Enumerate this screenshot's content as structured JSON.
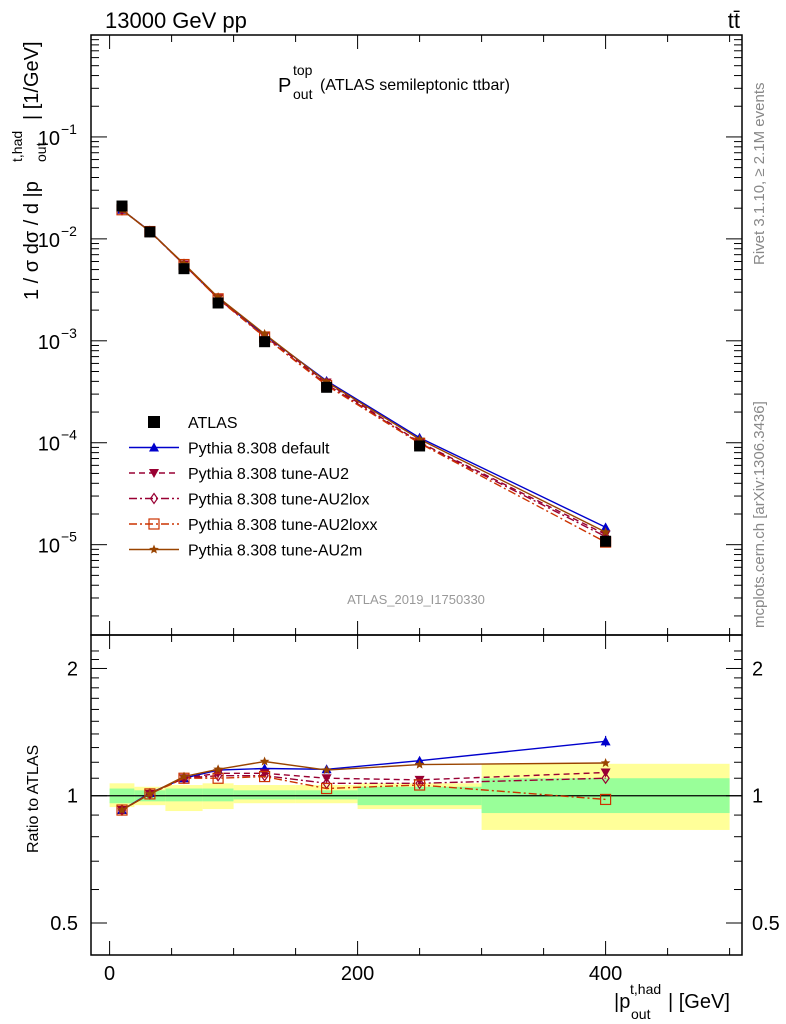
{
  "header": {
    "beam_text": "13000 GeV pp",
    "process_text": "tt̄",
    "title_main": "P",
    "title_sup": "top",
    "title_sub": "out",
    "title_rest": "(ATLAS semileptonic ttbar)",
    "analysis_id": "ATLAS_2019_I1750330",
    "side_rivet": "Rivet 3.1.10, ≥ 2.1M events",
    "side_mcplots": "mcplots.cern.ch [arXiv:1306.3436]"
  },
  "axes": {
    "ylabel_main": "1 / σ dσ / d |p",
    "ylabel_sup": "t,had",
    "ylabel_sub": "out",
    "ylabel_unit": "| [1/GeV]",
    "ratio_ylabel": "Ratio to ATLAS",
    "xlabel_main": "|p",
    "xlabel_sup": "t,had",
    "xlabel_sub": "out",
    "xlabel_unit": "| [GeV]",
    "x_ticks": [
      "0",
      "200",
      "400"
    ],
    "main_ticks": [
      {
        "base": "10",
        "exp": "−1"
      },
      {
        "base": "10",
        "exp": "−2"
      },
      {
        "base": "10",
        "exp": "−3"
      },
      {
        "base": "10",
        "exp": "−4"
      },
      {
        "base": "10",
        "exp": "−5"
      }
    ],
    "ratio_ticks_left": [
      "2",
      "1",
      "0.5"
    ],
    "ratio_ticks_right": [
      "2",
      "1",
      "0.5"
    ]
  },
  "legend": [
    {
      "label": "ATLAS"
    },
    {
      "label": "Pythia 8.308 default"
    },
    {
      "label": "Pythia 8.308 tune-AU2"
    },
    {
      "label": "Pythia 8.308 tune-AU2lox"
    },
    {
      "label": "Pythia 8.308 tune-AU2loxx"
    },
    {
      "label": "Pythia 8.308 tune-AU2m"
    }
  ],
  "chart_data": {
    "type": "line",
    "x_scale": "linear",
    "y_scale": "log",
    "ratio_y_scale": "log",
    "xlim": [
      -15,
      510
    ],
    "ylim": [
      1.3e-06,
      1.0
    ],
    "ratio_ylim": [
      0.42,
      2.4
    ],
    "grid": false,
    "legend_position": "lower-left",
    "x": [
      10,
      32.5,
      60,
      87.5,
      125,
      175,
      250,
      400
    ],
    "bin_edges": [
      0,
      20,
      45,
      75,
      100,
      150,
      200,
      300,
      500
    ],
    "data": {
      "name": "ATLAS",
      "values": [
        0.021,
        0.0117,
        0.0051,
        0.00235,
        0.00098,
        0.00035,
        9.3e-05,
        1.08e-05
      ],
      "color": "#000000"
    },
    "uncertainty_bands": {
      "inner_low": [
        0.96,
        0.97,
        0.97,
        0.97,
        0.98,
        0.98,
        0.95,
        0.91
      ],
      "inner_high": [
        1.04,
        1.03,
        1.04,
        1.04,
        1.03,
        1.03,
        1.05,
        1.1
      ],
      "outer_low": [
        0.94,
        0.95,
        0.92,
        0.93,
        0.96,
        0.96,
        0.93,
        0.83
      ],
      "outer_high": [
        1.07,
        1.05,
        1.06,
        1.07,
        1.06,
        1.06,
        1.07,
        1.19
      ],
      "inner_color": "#99ff99",
      "outer_color": "#ffff99"
    },
    "series": [
      {
        "name": "Pythia 8.308 default",
        "color": "#0000cc",
        "dash": "solid",
        "marker": "triangle-up",
        "values": [
          0.0193,
          0.0119,
          0.0056,
          0.00262,
          0.00114,
          0.000405,
          0.000112,
          1.48e-05
        ],
        "ratio": [
          0.925,
          1.015,
          1.1,
          1.15,
          1.16,
          1.155,
          1.21,
          1.345
        ]
      },
      {
        "name": "Pythia 8.308 tune-AU2",
        "color": "#990033",
        "dash": "dashed",
        "marker": "triangle-down",
        "values": [
          0.0193,
          0.0118,
          0.0056,
          0.0026,
          0.00111,
          0.00039,
          0.000101,
          1.26e-05
        ],
        "ratio": [
          0.925,
          1.01,
          1.1,
          1.13,
          1.13,
          1.1,
          1.09,
          1.135
        ]
      },
      {
        "name": "Pythia 8.308 tune-AU2lox",
        "color": "#990033",
        "dash": "dash-dot",
        "marker": "diamond-open",
        "values": [
          0.0193,
          0.0118,
          0.0056,
          0.0026,
          0.00109,
          0.000375,
          9.95e-05,
          1.2e-05
        ],
        "ratio": [
          0.925,
          1.01,
          1.1,
          1.115,
          1.115,
          1.07,
          1.07,
          1.1
        ]
      },
      {
        "name": "Pythia 8.308 tune-AU2loxx",
        "color": "#cc3300",
        "dash": "dash-dot",
        "marker": "square-open",
        "values": [
          0.0193,
          0.0118,
          0.0056,
          0.00258,
          0.00109,
          0.000365,
          9.88e-05,
          1.06e-05
        ],
        "ratio": [
          0.925,
          1.01,
          1.1,
          1.1,
          1.11,
          1.04,
          1.06,
          0.98
        ]
      },
      {
        "name": "Pythia 8.308 tune-AU2m",
        "color": "#994400",
        "dash": "solid",
        "marker": "star",
        "values": [
          0.0193,
          0.0118,
          0.0057,
          0.00268,
          0.00117,
          0.000395,
          0.000108,
          1.33e-05
        ],
        "ratio": [
          0.925,
          1.01,
          1.11,
          1.155,
          1.205,
          1.15,
          1.185,
          1.195
        ]
      }
    ]
  }
}
